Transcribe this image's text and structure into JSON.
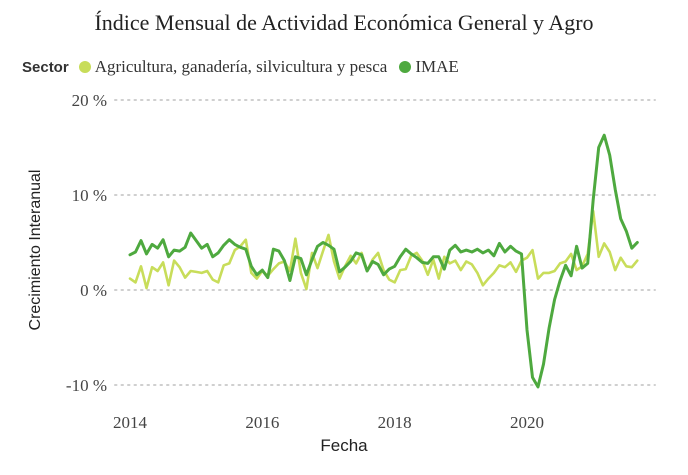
{
  "chart_data": {
    "type": "line",
    "title": "Índice Mensual de Actividad Económica General y Agro",
    "xlabel": "Fecha",
    "ylabel": "Crecimiento Interanual",
    "legend_title": "Sector",
    "legend_position": "top-left",
    "x_ticks": [
      "2014",
      "2016",
      "2018",
      "2020"
    ],
    "y_ticks": [
      "20 %",
      "10 %",
      "0 %",
      "-10 %"
    ],
    "y_tick_values": [
      20,
      10,
      0,
      -10
    ],
    "ylim": [
      -11,
      21
    ],
    "xlim": [
      2013.9,
      2021.9
    ],
    "grid": "horizontal-dotted",
    "x_start": "2014-01",
    "x_step": "monthly",
    "series": [
      {
        "name": "Agricultura, ganadería, silvicultura y pesca",
        "color": "#c8dd5a",
        "values": [
          1.2,
          0.8,
          2.5,
          0.2,
          2.4,
          2.0,
          2.9,
          0.5,
          3.1,
          2.4,
          1.3,
          2.0,
          1.9,
          1.8,
          2.0,
          1.1,
          0.8,
          2.6,
          2.8,
          4.2,
          4.6,
          5.3,
          1.8,
          1.2,
          2.0,
          1.5,
          2.2,
          2.8,
          3.0,
          2.0,
          5.4,
          1.8,
          0.1,
          3.9,
          2.3,
          4.1,
          5.8,
          3.0,
          1.2,
          2.5,
          3.6,
          2.8,
          3.9,
          2.0,
          3.2,
          3.9,
          2.1,
          1.1,
          0.8,
          2.1,
          2.2,
          3.6,
          3.9,
          3.1,
          1.6,
          3.2,
          1.2,
          3.5,
          2.8,
          3.1,
          2.1,
          3.0,
          2.7,
          1.8,
          0.5,
          1.2,
          1.8,
          2.6,
          2.4,
          2.9,
          1.9,
          3.1,
          3.4,
          4.2,
          1.2,
          1.8,
          1.8,
          2.0,
          2.8,
          3.0,
          3.8,
          2.1,
          2.5,
          3.8,
          8.3,
          3.5,
          4.9,
          4.0,
          2.1,
          3.4,
          2.5,
          2.4,
          3.1
        ]
      },
      {
        "name": "IMAE",
        "color": "#4ea93f",
        "values": [
          3.7,
          4.0,
          5.2,
          3.8,
          4.8,
          4.4,
          5.3,
          3.5,
          4.2,
          4.1,
          4.5,
          6.0,
          5.2,
          4.4,
          4.8,
          3.5,
          3.9,
          4.7,
          5.3,
          4.8,
          4.5,
          4.3,
          2.5,
          1.6,
          2.1,
          1.3,
          4.3,
          4.1,
          3.1,
          1.0,
          3.5,
          3.3,
          1.6,
          3.2,
          4.6,
          5.0,
          4.7,
          4.3,
          1.9,
          2.4,
          3.0,
          3.9,
          3.7,
          2.0,
          3.0,
          2.7,
          1.6,
          2.2,
          2.5,
          3.5,
          4.3,
          3.8,
          3.4,
          2.9,
          2.8,
          3.5,
          3.5,
          2.2,
          4.2,
          4.7,
          4.0,
          4.2,
          4.0,
          4.3,
          3.9,
          4.2,
          3.6,
          4.9,
          4.0,
          4.6,
          4.1,
          3.8,
          -4.2,
          -9.2,
          -10.2,
          -7.8,
          -4.0,
          -1.0,
          1.0,
          2.6,
          1.5,
          4.6,
          2.3,
          2.8,
          9.5,
          15.0,
          16.3,
          14.2,
          10.6,
          7.5,
          6.2,
          4.4,
          5.0
        ]
      }
    ]
  }
}
